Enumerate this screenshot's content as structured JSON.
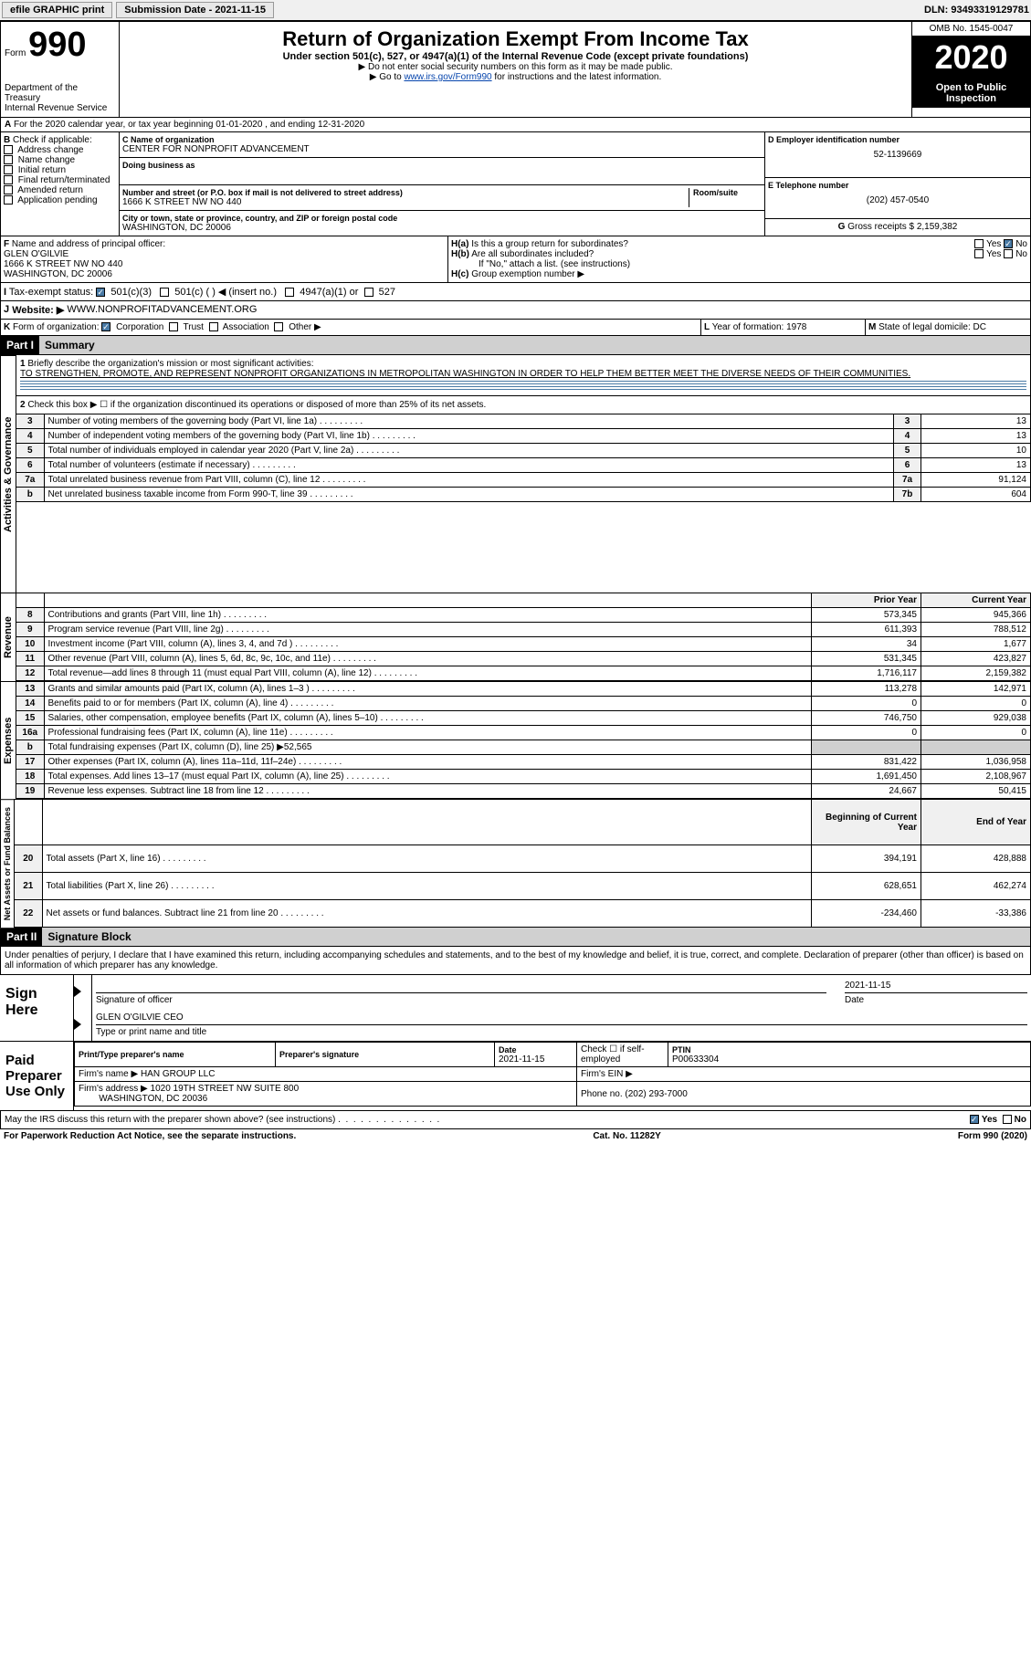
{
  "header": {
    "efile_label": "efile GRAPHIC print",
    "submission_label": "Submission Date - 2021-11-15",
    "dln_label": "DLN: 93493319129781"
  },
  "form_header": {
    "form_prefix": "Form",
    "form_number": "990",
    "dept": "Department of the Treasury",
    "irs": "Internal Revenue Service",
    "title": "Return of Organization Exempt From Income Tax",
    "subtitle": "Under section 501(c), 527, or 4947(a)(1) of the Internal Revenue Code (except private foundations)",
    "note1": "▶ Do not enter social security numbers on this form as it may be made public.",
    "note2_prefix": "▶ Go to ",
    "note2_link": "www.irs.gov/Form990",
    "note2_suffix": " for instructions and the latest information.",
    "omb": "OMB No. 1545-0047",
    "year": "2020",
    "open_public": "Open to Public Inspection"
  },
  "line_a": "For the 2020 calendar year, or tax year beginning 01-01-2020   , and ending 12-31-2020",
  "section_b": {
    "label": "B",
    "check_label": "Check if applicable:",
    "options": [
      "Address change",
      "Name change",
      "Initial return",
      "Final return/terminated",
      "Amended return",
      "Application pending"
    ]
  },
  "section_c": {
    "name_label": "C Name of organization",
    "name": "CENTER FOR NONPROFIT ADVANCEMENT",
    "dba_label": "Doing business as",
    "addr_label": "Number and street (or P.O. box if mail is not delivered to street address)",
    "room_label": "Room/suite",
    "address": "1666 K STREET NW NO 440",
    "city_label": "City or town, state or province, country, and ZIP or foreign postal code",
    "city": "WASHINGTON, DC  20006"
  },
  "section_d": {
    "label": "D Employer identification number",
    "value": "52-1139669"
  },
  "section_e": {
    "label": "E Telephone number",
    "value": "(202) 457-0540"
  },
  "section_g": {
    "label": "G",
    "text": "Gross receipts $",
    "value": "2,159,382"
  },
  "section_f": {
    "label": "F",
    "text": "Name and address of principal officer:",
    "name": "GLEN O'GILVIE",
    "addr1": "1666 K STREET NW NO 440",
    "addr2": "WASHINGTON, DC  20006"
  },
  "section_h": {
    "ha_label": "H(a)",
    "ha_text": "Is this a group return for subordinates?",
    "hb_label": "H(b)",
    "hb_text": "Are all subordinates included?",
    "hb_note": "If \"No,\" attach a list. (see instructions)",
    "hc_label": "H(c)",
    "hc_text": "Group exemption number ▶",
    "yes": "Yes",
    "no": "No"
  },
  "section_i": {
    "label": "I",
    "text": "Tax-exempt status:",
    "opt1": "501(c)(3)",
    "opt2": "501(c) (  ) ◀ (insert no.)",
    "opt3": "4947(a)(1) or",
    "opt4": "527"
  },
  "section_j": {
    "label": "J",
    "text": "Website: ▶",
    "value": "WWW.NONPROFITADVANCEMENT.ORG"
  },
  "section_k": {
    "label": "K",
    "text": "Form of organization:",
    "opts": [
      "Corporation",
      "Trust",
      "Association",
      "Other ▶"
    ]
  },
  "section_l": {
    "label": "L",
    "text": "Year of formation:",
    "value": "1978"
  },
  "section_m": {
    "label": "M",
    "text": "State of legal domicile:",
    "value": "DC"
  },
  "part1": {
    "header": "Part I",
    "title": "Summary",
    "line1_label": "1",
    "line1_text": "Briefly describe the organization's mission or most significant activities:",
    "line1_value": "TO STRENGTHEN, PROMOTE, AND REPRESENT NONPROFIT ORGANIZATIONS IN METROPOLITAN WASHINGTON IN ORDER TO HELP THEM BETTER MEET THE DIVERSE NEEDS OF THEIR COMMUNITIES.",
    "line2_label": "2",
    "line2_text": "Check this box ▶ ☐  if the organization discontinued its operations or disposed of more than 25% of its net assets.",
    "governance_label": "Activities & Governance",
    "revenue_label": "Revenue",
    "expenses_label": "Expenses",
    "netassets_label": "Net Assets or Fund Balances",
    "prior_year": "Prior Year",
    "current_year": "Current Year",
    "beginning": "Beginning of Current Year",
    "end": "End of Year",
    "rows_gov": [
      {
        "n": "3",
        "desc": "Number of voting members of the governing body (Part VI, line 1a)",
        "box": "3",
        "val": "13"
      },
      {
        "n": "4",
        "desc": "Number of independent voting members of the governing body (Part VI, line 1b)",
        "box": "4",
        "val": "13"
      },
      {
        "n": "5",
        "desc": "Total number of individuals employed in calendar year 2020 (Part V, line 2a)",
        "box": "5",
        "val": "10"
      },
      {
        "n": "6",
        "desc": "Total number of volunteers (estimate if necessary)",
        "box": "6",
        "val": "13"
      },
      {
        "n": "7a",
        "desc": "Total unrelated business revenue from Part VIII, column (C), line 12",
        "box": "7a",
        "val": "91,124"
      },
      {
        "n": "b",
        "desc": "Net unrelated business taxable income from Form 990-T, line 39",
        "box": "7b",
        "val": "604"
      }
    ],
    "rows_rev": [
      {
        "n": "8",
        "desc": "Contributions and grants (Part VIII, line 1h)",
        "py": "573,345",
        "cy": "945,366"
      },
      {
        "n": "9",
        "desc": "Program service revenue (Part VIII, line 2g)",
        "py": "611,393",
        "cy": "788,512"
      },
      {
        "n": "10",
        "desc": "Investment income (Part VIII, column (A), lines 3, 4, and 7d )",
        "py": "34",
        "cy": "1,677"
      },
      {
        "n": "11",
        "desc": "Other revenue (Part VIII, column (A), lines 5, 6d, 8c, 9c, 10c, and 11e)",
        "py": "531,345",
        "cy": "423,827"
      },
      {
        "n": "12",
        "desc": "Total revenue—add lines 8 through 11 (must equal Part VIII, column (A), line 12)",
        "py": "1,716,117",
        "cy": "2,159,382"
      }
    ],
    "rows_exp": [
      {
        "n": "13",
        "desc": "Grants and similar amounts paid (Part IX, column (A), lines 1–3 )",
        "py": "113,278",
        "cy": "142,971"
      },
      {
        "n": "14",
        "desc": "Benefits paid to or for members (Part IX, column (A), line 4)",
        "py": "0",
        "cy": "0"
      },
      {
        "n": "15",
        "desc": "Salaries, other compensation, employee benefits (Part IX, column (A), lines 5–10)",
        "py": "746,750",
        "cy": "929,038"
      },
      {
        "n": "16a",
        "desc": "Professional fundraising fees (Part IX, column (A), line 11e)",
        "py": "0",
        "cy": "0"
      },
      {
        "n": "b",
        "desc": "Total fundraising expenses (Part IX, column (D), line 25) ▶52,565",
        "py": "",
        "cy": "",
        "shaded": true
      },
      {
        "n": "17",
        "desc": "Other expenses (Part IX, column (A), lines 11a–11d, 11f–24e)",
        "py": "831,422",
        "cy": "1,036,958"
      },
      {
        "n": "18",
        "desc": "Total expenses. Add lines 13–17 (must equal Part IX, column (A), line 25)",
        "py": "1,691,450",
        "cy": "2,108,967"
      },
      {
        "n": "19",
        "desc": "Revenue less expenses. Subtract line 18 from line 12",
        "py": "24,667",
        "cy": "50,415"
      }
    ],
    "rows_net": [
      {
        "n": "20",
        "desc": "Total assets (Part X, line 16)",
        "py": "394,191",
        "cy": "428,888"
      },
      {
        "n": "21",
        "desc": "Total liabilities (Part X, line 26)",
        "py": "628,651",
        "cy": "462,274"
      },
      {
        "n": "22",
        "desc": "Net assets or fund balances. Subtract line 21 from line 20",
        "py": "-234,460",
        "cy": "-33,386"
      }
    ]
  },
  "part2": {
    "header": "Part II",
    "title": "Signature Block",
    "declaration": "Under penalties of perjury, I declare that I have examined this return, including accompanying schedules and statements, and to the best of my knowledge and belief, it is true, correct, and complete. Declaration of preparer (other than officer) is based on all information of which preparer has any knowledge.",
    "sign_here": "Sign Here",
    "sig_officer": "Signature of officer",
    "sig_date": "2021-11-15",
    "date_label": "Date",
    "officer_name": "GLEN O'GILVIE CEO",
    "name_title_label": "Type or print name and title",
    "paid_preparer": "Paid Preparer Use Only",
    "preparer_name_label": "Print/Type preparer's name",
    "preparer_sig_label": "Preparer's signature",
    "prep_date_label": "Date",
    "prep_date": "2021-11-15",
    "check_self": "Check ☐ if self-employed",
    "ptin_label": "PTIN",
    "ptin": "P00633304",
    "firm_name_label": "Firm's name  ▶",
    "firm_name": "HAN GROUP LLC",
    "firm_ein_label": "Firm's EIN ▶",
    "firm_addr_label": "Firm's address ▶",
    "firm_addr": "1020 19TH STREET NW SUITE 800",
    "firm_city": "WASHINGTON, DC  20036",
    "phone_label": "Phone no.",
    "phone": "(202) 293-7000",
    "discuss": "May the IRS discuss this return with the preparer shown above? (see instructions)",
    "yes": "Yes",
    "no": "No"
  },
  "footer": {
    "paperwork": "For Paperwork Reduction Act Notice, see the separate instructions.",
    "cat": "Cat. No. 11282Y",
    "form": "Form 990 (2020)"
  }
}
